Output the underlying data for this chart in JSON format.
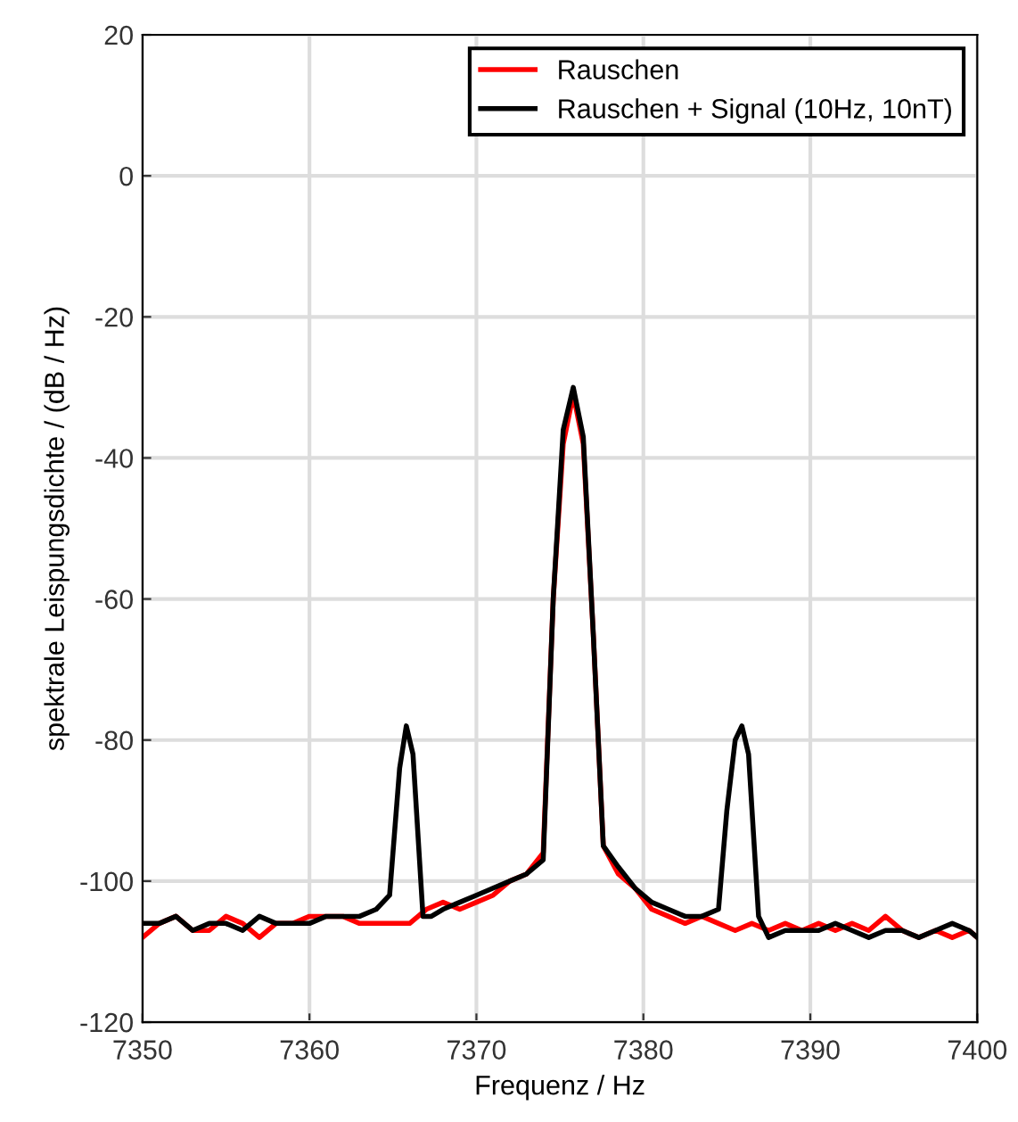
{
  "chart_data": {
    "type": "line",
    "xlabel": "Frequenz / Hz",
    "ylabel": "spektrale Leispungsdichte / (dB / Hz)",
    "xlim": [
      7350,
      7400
    ],
    "ylim": [
      -120,
      20
    ],
    "xticks": [
      7350,
      7360,
      7370,
      7380,
      7390,
      7400
    ],
    "yticks": [
      -120,
      -100,
      -80,
      -60,
      -40,
      -20,
      0,
      20
    ],
    "grid": true,
    "legend": "top right",
    "line_style": "solid",
    "marker": "none",
    "series": [
      {
        "name": "Rauschen",
        "color": "#ff0000",
        "x": [
          7350,
          7351,
          7352,
          7353,
          7354,
          7355,
          7356,
          7357,
          7358,
          7359,
          7360,
          7361,
          7362,
          7363,
          7364,
          7365,
          7366,
          7367,
          7368,
          7369,
          7370,
          7371,
          7372,
          7373,
          7374,
          7374.6,
          7375.2,
          7375.8,
          7376.4,
          7377,
          7377.6,
          7378.5,
          7379.5,
          7380.5,
          7381.5,
          7382.5,
          7383.5,
          7384.5,
          7385.5,
          7386.5,
          7387.5,
          7388.5,
          7389.5,
          7390.5,
          7391.5,
          7392.5,
          7393.5,
          7394.5,
          7395.5,
          7396.5,
          7397.5,
          7398.5,
          7399.5,
          7400
        ],
        "values": [
          -108,
          -106,
          -105,
          -107,
          -107,
          -105,
          -106,
          -108,
          -106,
          -106,
          -105,
          -105,
          -105,
          -106,
          -106,
          -106,
          -106,
          -104,
          -103,
          -104,
          -103,
          -102,
          -100,
          -99,
          -96,
          -60,
          -38,
          -31,
          -38,
          -65,
          -95,
          -99,
          -101,
          -104,
          -105,
          -106,
          -105,
          -106,
          -107,
          -106,
          -107,
          -106,
          -107,
          -106,
          -107,
          -106,
          -107,
          -105,
          -107,
          -108,
          -107,
          -108,
          -107,
          -108
        ]
      },
      {
        "name": "Rauschen + Signal (10Hz, 10nT)",
        "color": "#000000",
        "x": [
          7350,
          7351,
          7352,
          7353,
          7354,
          7355,
          7356,
          7357,
          7358,
          7359,
          7360,
          7361,
          7362,
          7363,
          7364,
          7364.8,
          7365.4,
          7365.8,
          7366.2,
          7366.8,
          7367.3,
          7368,
          7369,
          7370,
          7371,
          7372,
          7373,
          7374,
          7374.6,
          7375.2,
          7375.8,
          7376.4,
          7377,
          7377.6,
          7378.5,
          7379.5,
          7380.5,
          7381.5,
          7382.5,
          7383.5,
          7384.5,
          7385,
          7385.5,
          7385.9,
          7386.3,
          7386.9,
          7387.5,
          7388.5,
          7389.5,
          7390.5,
          7391.5,
          7392.5,
          7393.5,
          7394.5,
          7395.5,
          7396.5,
          7397.5,
          7398.5,
          7399.5,
          7400
        ],
        "values": [
          -106,
          -106,
          -105,
          -107,
          -106,
          -106,
          -107,
          -105,
          -106,
          -106,
          -106,
          -105,
          -105,
          -105,
          -104,
          -102,
          -84,
          -78,
          -82,
          -105,
          -105,
          -104,
          -103,
          -102,
          -101,
          -100,
          -99,
          -97,
          -60,
          -36,
          -30,
          -37,
          -65,
          -95,
          -98,
          -101,
          -103,
          -104,
          -105,
          -105,
          -104,
          -90,
          -80,
          -78,
          -82,
          -105,
          -108,
          -107,
          -107,
          -107,
          -106,
          -107,
          -108,
          -107,
          -107,
          -108,
          -107,
          -106,
          -107,
          -108
        ]
      }
    ]
  }
}
